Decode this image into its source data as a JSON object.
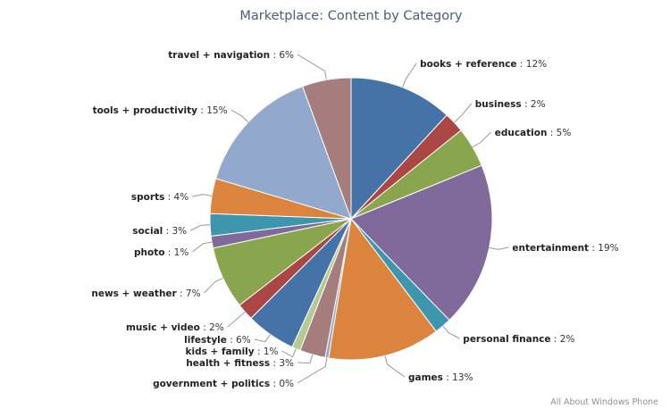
{
  "chart_data": {
    "type": "pie",
    "title": "Marketplace: Content by Category",
    "credit": "All About Windows Phone",
    "label_separator": " : ",
    "slices": [
      {
        "name": "books + reference",
        "label_value": "12%",
        "value": 12.1,
        "color": "#4572a7"
      },
      {
        "name": "business",
        "label_value": "2%",
        "value": 2.4,
        "color": "#aa4643"
      },
      {
        "name": "education",
        "label_value": "5%",
        "value": 4.7,
        "color": "#89a54e"
      },
      {
        "name": "entertainment",
        "label_value": "19%",
        "value": 19.3,
        "color": "#80699b"
      },
      {
        "name": "personal finance",
        "label_value": "2%",
        "value": 2.0,
        "color": "#3d96ae"
      },
      {
        "name": "games",
        "label_value": "13%",
        "value": 13.1,
        "color": "#db843d"
      },
      {
        "name": "government + politics",
        "label_value": "0%",
        "value": 0.4,
        "color": "#92a8cd"
      },
      {
        "name": "health + fitness",
        "label_value": "3%",
        "value": 3.0,
        "color": "#a47d7c"
      },
      {
        "name": "kids + family",
        "label_value": "1%",
        "value": 1.0,
        "color": "#b5ca92"
      },
      {
        "name": "lifestyle",
        "label_value": "6%",
        "value": 5.8,
        "color": "#4572a7"
      },
      {
        "name": "music + video",
        "label_value": "2%",
        "value": 2.0,
        "color": "#aa4643"
      },
      {
        "name": "news + weather",
        "label_value": "7%",
        "value": 7.3,
        "color": "#89a54e"
      },
      {
        "name": "photo",
        "label_value": "1%",
        "value": 1.4,
        "color": "#80699b"
      },
      {
        "name": "social",
        "label_value": "3%",
        "value": 2.6,
        "color": "#3d96ae"
      },
      {
        "name": "sports",
        "label_value": "4%",
        "value": 4.1,
        "color": "#db843d"
      },
      {
        "name": "tools + productivity",
        "label_value": "15%",
        "value": 15.1,
        "color": "#92a8cd"
      },
      {
        "name": "travel + navigation",
        "label_value": "6%",
        "value": 5.7,
        "color": "#a47d7c"
      }
    ]
  }
}
